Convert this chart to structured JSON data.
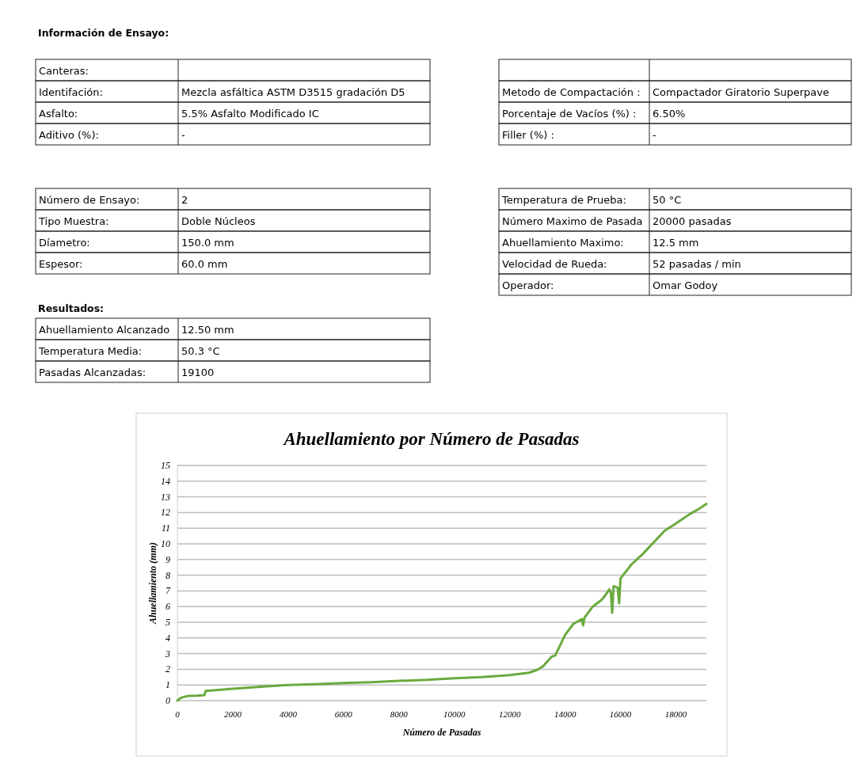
{
  "chart_data": [
    {
      "type": "other",
      "title": "Información de Ensayo:",
      "annotations": [
        "Canteras:",
        null,
        "Identifación:",
        "Mezcla asfáltica ASTM D3515 gradación D5",
        "Asfalto:",
        "5.5% Asfalto Modificado IC",
        "Aditivo (%):",
        "-"
      ]
    },
    {
      "type": "other",
      "annotations": [
        null,
        null,
        "Metodo de Compactación :",
        "Compactador Giratorio Superpave",
        "Porcentaje de Vacíos (%) :",
        "6.50%",
        "Filler (%) :",
        "-"
      ]
    },
    {
      "type": "other",
      "annotations": [
        "Número de Ensayo:",
        "2",
        "Tipo Muestra:",
        "Doble Núcleos",
        "Díametro:",
        "150.0 mm",
        "Espesor:",
        "60.0 mm"
      ]
    },
    {
      "type": "other",
      "annotations": [
        "Temperatura de Prueba:",
        "50 °C",
        "Número Maximo de Pasada",
        "20000 pasadas",
        "Ahuellamiento Maximo:",
        "12.5 mm",
        "Velocidad de Rueda:",
        "52 pasadas / min",
        "Operador:",
        "Omar Godoy"
      ]
    },
    {
      "type": "other",
      "title": "Resultados:",
      "annotations": [
        "Ahuellamiento Alcanzado",
        "12.50 mm",
        "Temperatura Media:",
        "50.3 °C",
        "Pasadas Alcanzadas:",
        "19100"
      ]
    },
    {
      "type": "line",
      "title": "Ahuellamiento por Número de Pasadas",
      "xlabel": "Número de Pasadas",
      "ylabel": "Ahuellamiento (mm)",
      "xlim": [
        0,
        19100
      ],
      "xticks": [
        0,
        2000,
        4000,
        6000,
        8000,
        10000,
        12000,
        14000,
        16000,
        18000
      ],
      "ylim": [
        0,
        15
      ],
      "yticks": [
        0,
        1,
        2,
        3,
        4,
        5,
        6,
        7,
        8,
        9,
        10,
        11,
        12,
        13,
        14,
        15
      ],
      "grid": "y",
      "series": [
        {
          "color": "#6aaa3e",
          "x": [
            0,
            100,
            200,
            400,
            700,
            980,
            1020,
            1300,
            2000,
            3000,
            4000,
            5000,
            6000,
            7000,
            8000,
            9000,
            10000,
            11000,
            12000,
            12700,
            13000,
            13200,
            13500,
            13650,
            13700,
            13800,
            14000,
            14300,
            14600,
            14650,
            14700,
            15000,
            15300,
            15400,
            15600,
            15650,
            15700,
            15750,
            15900,
            15950,
            16000,
            16400,
            16800,
            17200,
            17600,
            18000,
            18500,
            18800,
            19100
          ],
          "values": [
            0,
            0.15,
            0.22,
            0.3,
            0.32,
            0.35,
            0.62,
            0.66,
            0.76,
            0.88,
            1.0,
            1.05,
            1.12,
            1.18,
            1.26,
            1.32,
            1.43,
            1.5,
            1.63,
            1.78,
            1.97,
            2.19,
            2.78,
            2.9,
            3.1,
            3.45,
            4.2,
            4.9,
            5.2,
            4.8,
            5.3,
            6.0,
            6.4,
            6.6,
            7.1,
            6.9,
            5.6,
            7.3,
            7.2,
            6.2,
            7.8,
            8.7,
            9.35,
            10.1,
            10.85,
            11.3,
            11.9,
            12.2,
            12.55
          ]
        }
      ]
    }
  ]
}
